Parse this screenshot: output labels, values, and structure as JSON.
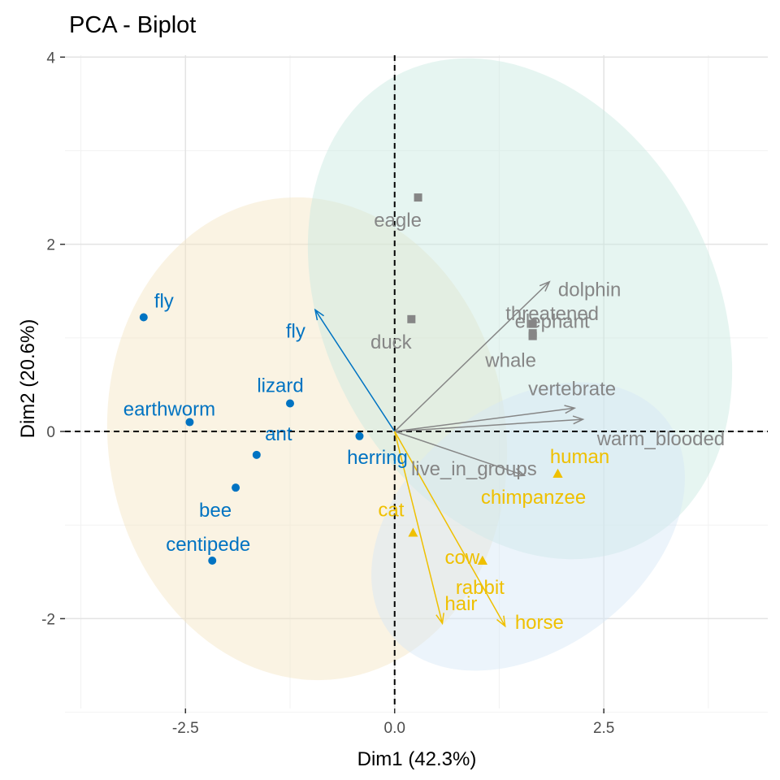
{
  "chart_data": {
    "type": "scatter",
    "title": "PCA - Biplot",
    "xlabel": "Dim1 (42.3%)",
    "ylabel": "Dim2 (20.6%)",
    "xlim": [
      -3.94,
      4.46
    ],
    "ylim": [
      -2.96,
      4.02
    ],
    "x_ticks": [
      {
        "value": -2.5,
        "label": "-2.5"
      },
      {
        "value": 0,
        "label": "0.0"
      },
      {
        "value": 2.5,
        "label": "2.5"
      }
    ],
    "y_ticks": [
      {
        "value": -2,
        "label": "-2"
      },
      {
        "value": 0,
        "label": "0"
      },
      {
        "value": 2,
        "label": "2"
      },
      {
        "value": 4,
        "label": "4"
      }
    ],
    "grid": true,
    "reference_lines": {
      "x": 0,
      "y": 0,
      "style": "dashed"
    },
    "groups": [
      {
        "color": "#0073C2",
        "marker": "circle",
        "ellipse_color": "#F5E5C0",
        "points": [
          {
            "label": "fly",
            "x": -3.0,
            "y": 1.22
          },
          {
            "label": "earthworm",
            "x": -2.45,
            "y": 0.1
          },
          {
            "label": "lizard",
            "x": -1.25,
            "y": 0.3
          },
          {
            "label": "ant",
            "x": -1.65,
            "y": -0.25
          },
          {
            "label": "herring",
            "x": -0.42,
            "y": -0.05
          },
          {
            "label": "bee",
            "x": -1.9,
            "y": -0.6
          },
          {
            "label": "centipede",
            "x": -2.18,
            "y": -1.38
          }
        ],
        "variables": [
          {
            "label": "fly",
            "x": -0.95,
            "y": 1.3
          }
        ]
      },
      {
        "color": "#868686",
        "marker": "square",
        "ellipse_color": "#C8E8E0",
        "points": [
          {
            "label": "eagle",
            "x": 0.28,
            "y": 2.5
          },
          {
            "label": "duck",
            "x": 0.2,
            "y": 1.2
          },
          {
            "label": "dolphin",
            "x": 1.65,
            "y": 1.15
          },
          {
            "label": "threatened",
            "x": 1.65,
            "y": 1.05
          },
          {
            "label": "elephant",
            "x": 1.65,
            "y": 1.02
          },
          {
            "label": "whale",
            "x": 1.65,
            "y": 1.02
          }
        ],
        "variables": [
          {
            "label": "threatened",
            "x": 1.85,
            "y": 1.6
          },
          {
            "label": "vertebrate",
            "x": 2.15,
            "y": 0.25
          },
          {
            "label": "warm_blooded",
            "x": 2.25,
            "y": 0.13
          },
          {
            "label": "live_in_groups",
            "x": 1.55,
            "y": -0.47
          }
        ]
      },
      {
        "color": "#EFC000",
        "marker": "triangle",
        "ellipse_color": "#D5E7F7",
        "points": [
          {
            "label": "human",
            "x": 1.95,
            "y": -0.45
          },
          {
            "label": "chimpanzee",
            "x": 1.95,
            "y": -0.45
          },
          {
            "label": "cat",
            "x": 0.22,
            "y": -1.08
          },
          {
            "label": "cow",
            "x": 1.05,
            "y": -1.38
          },
          {
            "label": "rabbit",
            "x": 1.05,
            "y": -1.38
          },
          {
            "label": "horse",
            "x": 1.05,
            "y": -1.38
          }
        ],
        "variables": [
          {
            "label": "hair",
            "x": 0.57,
            "y": -2.05
          },
          {
            "label": "horse",
            "x": 1.32,
            "y": -2.08
          }
        ]
      }
    ]
  }
}
